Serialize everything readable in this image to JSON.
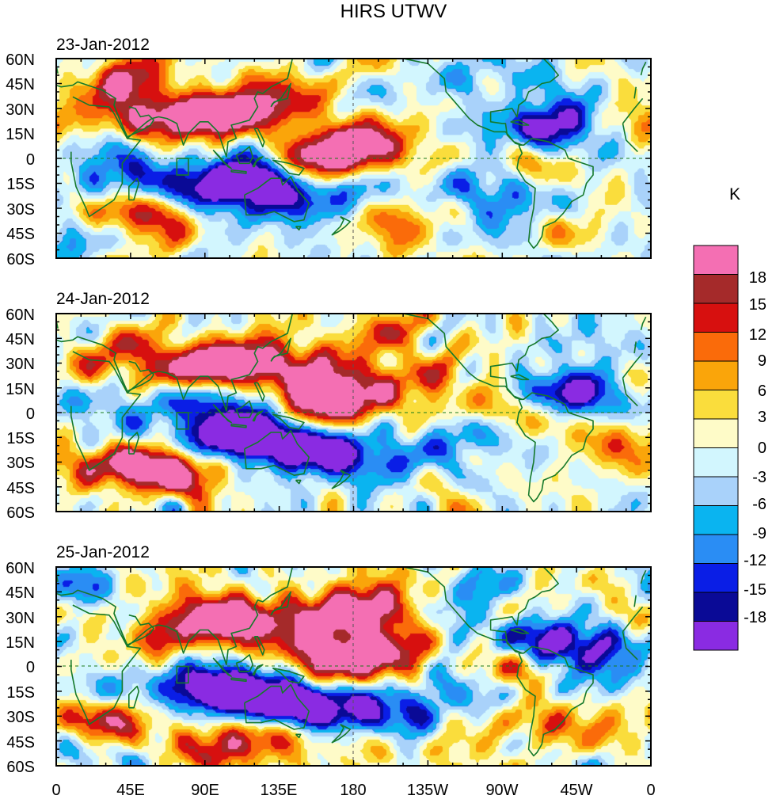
{
  "chart_data": {
    "type": "heatmap",
    "title": "HIRS UTWV",
    "units": "K",
    "x_tick_labels": [
      "0",
      "45E",
      "90E",
      "135E",
      "180",
      "135W",
      "90W",
      "45W",
      "0"
    ],
    "x_tick_lons": [
      0,
      45,
      90,
      135,
      180,
      225,
      270,
      315,
      360
    ],
    "y_tick_labels": [
      "60N",
      "45N",
      "30N",
      "15N",
      "0",
      "15S",
      "30S",
      "45S",
      "60S"
    ],
    "y_tick_lats": [
      60,
      45,
      30,
      15,
      0,
      -15,
      -30,
      -45,
      -60
    ],
    "xlim": [
      0,
      360
    ],
    "ylim": [
      -60,
      60
    ],
    "legend": {
      "position": "right",
      "level_labels": [
        "18",
        "15",
        "12",
        "9",
        "6",
        "3",
        "0",
        "-3",
        "-6",
        "-9",
        "-12",
        "-15",
        "-18"
      ],
      "bins_top_to_bottom": [
        {
          "range": ">18",
          "color": "#f46fb3"
        },
        {
          "range": "15 to 18",
          "color": "#a52a2a"
        },
        {
          "range": "12 to 15",
          "color": "#d7100f"
        },
        {
          "range": "9 to 12",
          "color": "#fa6b0a"
        },
        {
          "range": "6 to 9",
          "color": "#faa50a"
        },
        {
          "range": "3 to 6",
          "color": "#fadd3c"
        },
        {
          "range": "0 to 3",
          "color": "#fefbc8"
        },
        {
          "range": "-3 to 0",
          "color": "#d2f6fe"
        },
        {
          "range": "-6 to -3",
          "color": "#a9d2fa"
        },
        {
          "range": "-9 to -6",
          "color": "#0ab4f0"
        },
        {
          "range": "-12 to -9",
          "color": "#2a8df4"
        },
        {
          "range": "-15 to -12",
          "color": "#0a1ee6"
        },
        {
          "range": "-18 to -15",
          "color": "#0a0a96"
        },
        {
          "range": "<-18",
          "color": "#8a2be2"
        }
      ]
    },
    "panels": [
      {
        "date": "23-Jan-2012",
        "features": [
          {
            "lon": 40,
            "lat": 45,
            "value": 16
          },
          {
            "lon": 65,
            "lat": 25,
            "value": 10
          },
          {
            "lon": 90,
            "lat": 25,
            "value": 14
          },
          {
            "lon": 110,
            "lat": 26,
            "value": 14
          },
          {
            "lon": 130,
            "lat": 28,
            "value": 8
          },
          {
            "lon": 160,
            "lat": 8,
            "value": 16
          },
          {
            "lon": 165,
            "lat": 0,
            "value": 14
          },
          {
            "lon": 195,
            "lat": 10,
            "value": 9
          },
          {
            "lon": 150,
            "lat": 45,
            "value": 6
          },
          {
            "lon": 20,
            "lat": 25,
            "value": 6
          },
          {
            "lon": 45,
            "lat": -30,
            "value": 9
          },
          {
            "lon": 55,
            "lat": -35,
            "value": 12
          },
          {
            "lon": 200,
            "lat": -35,
            "value": 12
          },
          {
            "lon": 345,
            "lat": 20,
            "value": 8
          },
          {
            "lon": 220,
            "lat": 0,
            "value": 6
          },
          {
            "lon": 285,
            "lat": 0,
            "value": 8
          },
          {
            "lon": 325,
            "lat": -10,
            "value": 6
          },
          {
            "lon": 95,
            "lat": -15,
            "value": -19
          },
          {
            "lon": 110,
            "lat": -12,
            "value": -13
          },
          {
            "lon": 36,
            "lat": -18,
            "value": -14
          },
          {
            "lon": 140,
            "lat": -30,
            "value": -14
          },
          {
            "lon": 130,
            "lat": 10,
            "value": -10
          },
          {
            "lon": 305,
            "lat": 22,
            "value": -17
          },
          {
            "lon": 270,
            "lat": 15,
            "value": -10
          },
          {
            "lon": 320,
            "lat": 0,
            "value": -8
          },
          {
            "lon": 240,
            "lat": -15,
            "value": -8
          },
          {
            "lon": 175,
            "lat": -20,
            "value": -12
          },
          {
            "lon": 270,
            "lat": -25,
            "value": -9
          },
          {
            "lon": 15,
            "lat": 5,
            "value": -7
          },
          {
            "lon": 240,
            "lat": 50,
            "value": -6
          },
          {
            "lon": 300,
            "lat": 45,
            "value": -5
          },
          {
            "lon": 20,
            "lat": -50,
            "value": -5
          }
        ]
      },
      {
        "date": "24-Jan-2012",
        "features": [
          {
            "lon": 95,
            "lat": 30,
            "value": 16
          },
          {
            "lon": 115,
            "lat": 26,
            "value": 14
          },
          {
            "lon": 60,
            "lat": 25,
            "value": 10
          },
          {
            "lon": 40,
            "lat": 40,
            "value": 9
          },
          {
            "lon": 160,
            "lat": 3,
            "value": 19
          },
          {
            "lon": 155,
            "lat": 12,
            "value": 13
          },
          {
            "lon": 180,
            "lat": 25,
            "value": 9
          },
          {
            "lon": 140,
            "lat": 35,
            "value": 8
          },
          {
            "lon": 75,
            "lat": -32,
            "value": 13
          },
          {
            "lon": 65,
            "lat": -40,
            "value": 12
          },
          {
            "lon": 30,
            "lat": -30,
            "value": 16
          },
          {
            "lon": 45,
            "lat": -25,
            "value": 9
          },
          {
            "lon": 210,
            "lat": 50,
            "value": 9
          },
          {
            "lon": 285,
            "lat": 2,
            "value": 14
          },
          {
            "lon": 345,
            "lat": 20,
            "value": 9
          },
          {
            "lon": 195,
            "lat": 10,
            "value": 7
          },
          {
            "lon": 340,
            "lat": -15,
            "value": 7
          },
          {
            "lon": 230,
            "lat": 20,
            "value": 6
          },
          {
            "lon": 105,
            "lat": -15,
            "value": -19
          },
          {
            "lon": 120,
            "lat": -12,
            "value": -15
          },
          {
            "lon": 150,
            "lat": -25,
            "value": -17
          },
          {
            "lon": 170,
            "lat": -20,
            "value": -11
          },
          {
            "lon": 200,
            "lat": -30,
            "value": -9
          },
          {
            "lon": 80,
            "lat": 10,
            "value": -13
          },
          {
            "lon": 40,
            "lat": -20,
            "value": -13
          },
          {
            "lon": 125,
            "lat": 5,
            "value": -10
          },
          {
            "lon": 315,
            "lat": 14,
            "value": -19
          },
          {
            "lon": 300,
            "lat": 8,
            "value": -11
          },
          {
            "lon": 255,
            "lat": -15,
            "value": -8
          },
          {
            "lon": 340,
            "lat": 45,
            "value": -8
          },
          {
            "lon": 15,
            "lat": 5,
            "value": -8
          },
          {
            "lon": 50,
            "lat": -55,
            "value": -5
          }
        ]
      },
      {
        "date": "25-Jan-2012",
        "features": [
          {
            "lon": 95,
            "lat": 30,
            "value": 16
          },
          {
            "lon": 115,
            "lat": 28,
            "value": 13
          },
          {
            "lon": 160,
            "lat": 28,
            "value": 12
          },
          {
            "lon": 185,
            "lat": 30,
            "value": 9
          },
          {
            "lon": 145,
            "lat": 10,
            "value": 12
          },
          {
            "lon": 175,
            "lat": 0,
            "value": 15
          },
          {
            "lon": 205,
            "lat": 8,
            "value": 14
          },
          {
            "lon": 195,
            "lat": 40,
            "value": 13
          },
          {
            "lon": 65,
            "lat": 15,
            "value": 8
          },
          {
            "lon": 30,
            "lat": -30,
            "value": 16
          },
          {
            "lon": 50,
            "lat": -25,
            "value": 10
          },
          {
            "lon": 95,
            "lat": -50,
            "value": 13
          },
          {
            "lon": 110,
            "lat": -40,
            "value": 9
          },
          {
            "lon": 285,
            "lat": 0,
            "value": 14
          },
          {
            "lon": 315,
            "lat": -35,
            "value": 12
          },
          {
            "lon": 345,
            "lat": 30,
            "value": 8
          },
          {
            "lon": 160,
            "lat": -45,
            "value": 9
          },
          {
            "lon": 100,
            "lat": -17,
            "value": -19
          },
          {
            "lon": 85,
            "lat": -10,
            "value": -13
          },
          {
            "lon": 40,
            "lat": -22,
            "value": -15
          },
          {
            "lon": 135,
            "lat": -18,
            "value": -13
          },
          {
            "lon": 150,
            "lat": -25,
            "value": -15
          },
          {
            "lon": 175,
            "lat": -25,
            "value": -11
          },
          {
            "lon": 315,
            "lat": 17,
            "value": -19
          },
          {
            "lon": 305,
            "lat": 10,
            "value": -12
          },
          {
            "lon": 330,
            "lat": -10,
            "value": -8
          },
          {
            "lon": 240,
            "lat": -15,
            "value": -9
          },
          {
            "lon": 210,
            "lat": -30,
            "value": -10
          },
          {
            "lon": 125,
            "lat": 5,
            "value": -9
          },
          {
            "lon": 10,
            "lat": 45,
            "value": -8
          },
          {
            "lon": 250,
            "lat": 45,
            "value": -6
          },
          {
            "lon": 20,
            "lat": -55,
            "value": -5
          }
        ]
      }
    ]
  }
}
